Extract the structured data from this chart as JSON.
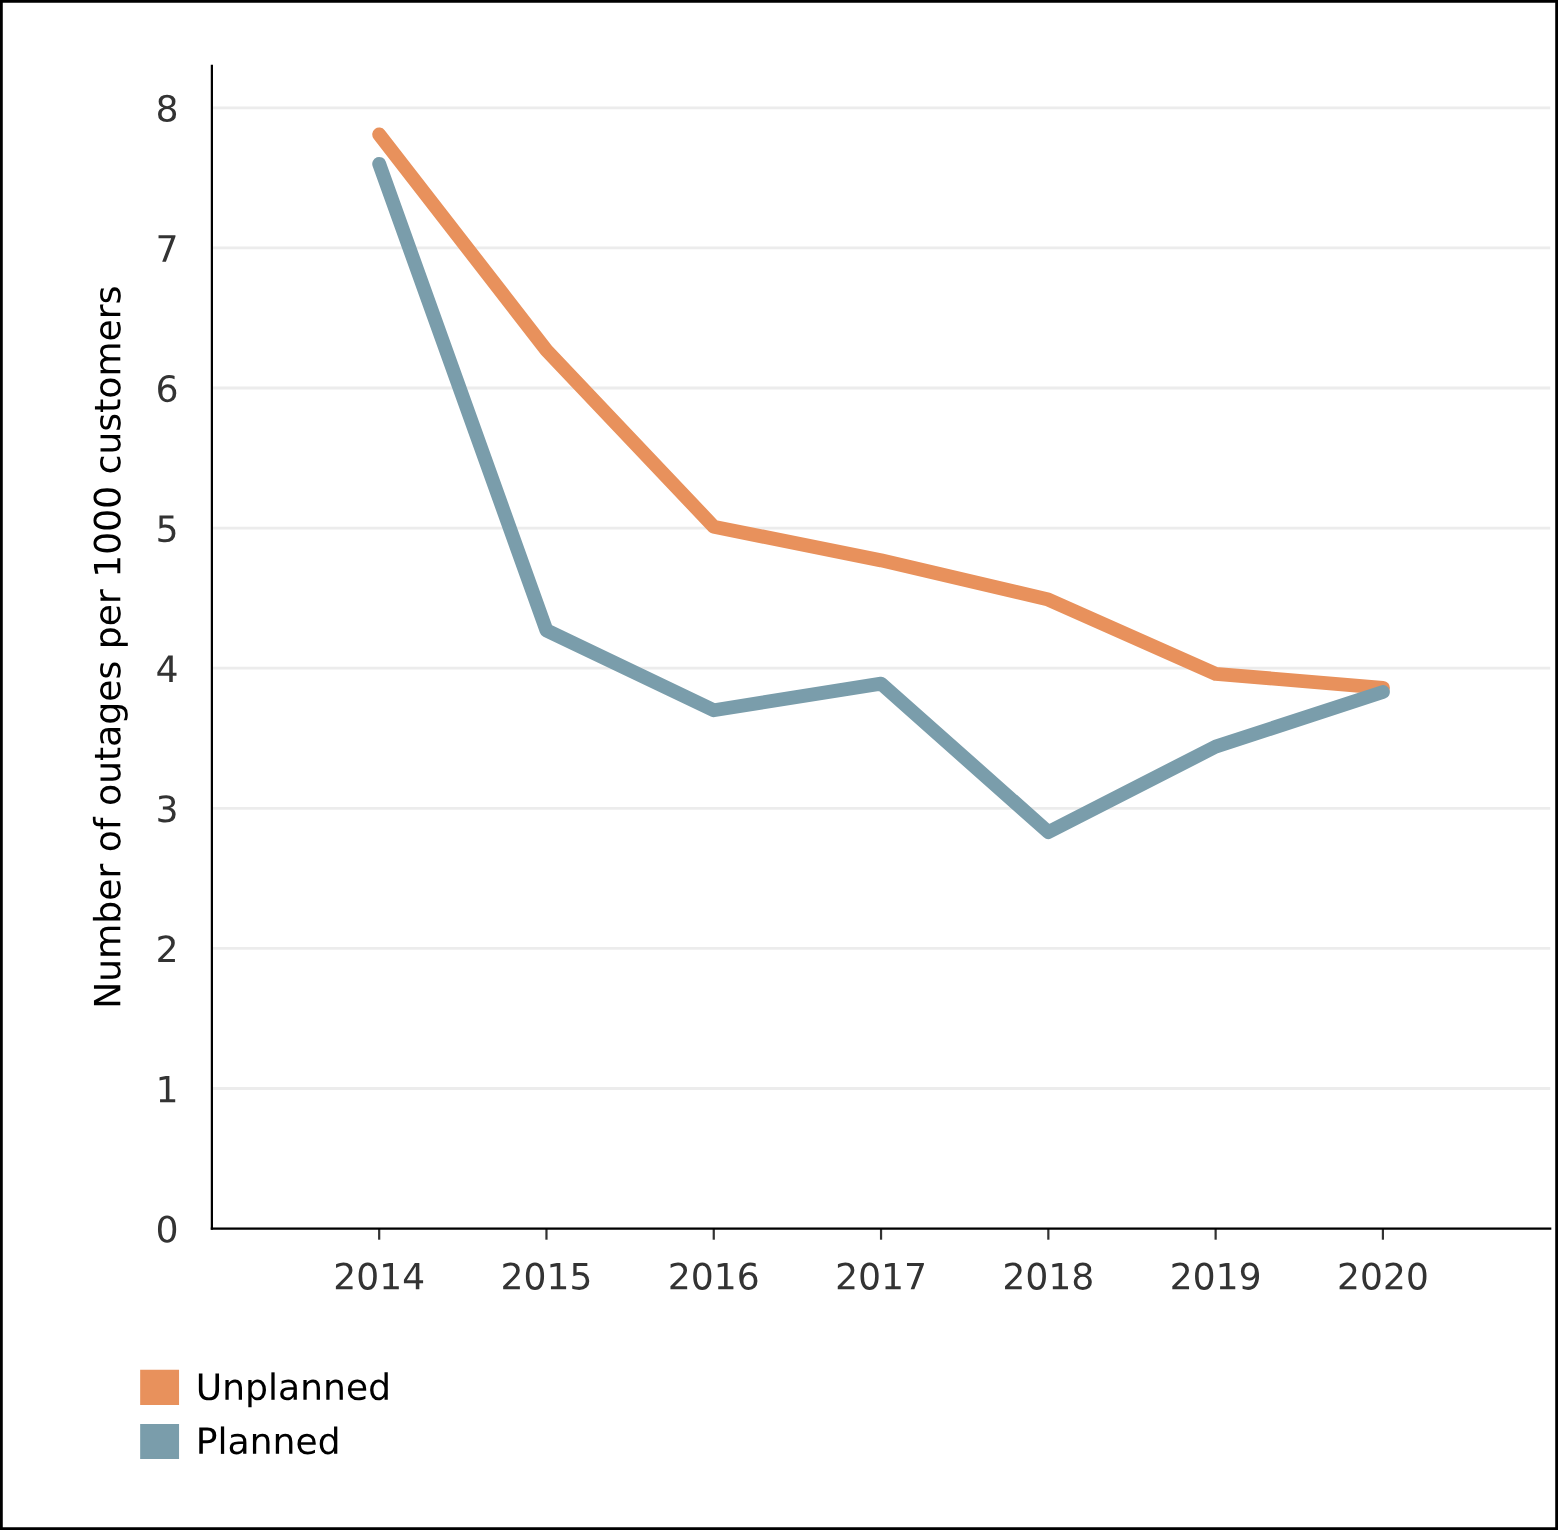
{
  "chart_data": {
    "type": "line",
    "ylabel": "Number of outages per 1000 customers",
    "x": [
      2014,
      2015,
      2016,
      2017,
      2018,
      2019,
      2020
    ],
    "series": [
      {
        "name": "Unplanned",
        "color": "#e8915c",
        "values": [
          7.81,
          6.27,
          5.01,
          4.77,
          4.49,
          3.96,
          3.86
        ]
      },
      {
        "name": "Planned",
        "color": "#7a9dab",
        "values": [
          7.6,
          4.27,
          3.7,
          3.89,
          2.83,
          3.44,
          3.83
        ]
      }
    ],
    "xlim": [
      2013,
      2021
    ],
    "xticks": [
      2014,
      2015,
      2016,
      2017,
      2018,
      2019,
      2020
    ],
    "ylim": [
      0,
      8.3
    ],
    "yticks": [
      0,
      1,
      2,
      3,
      4,
      5,
      6,
      7,
      8
    ],
    "grid": "y",
    "legend": "bottom left",
    "marker": "none",
    "line_style": "solid"
  }
}
